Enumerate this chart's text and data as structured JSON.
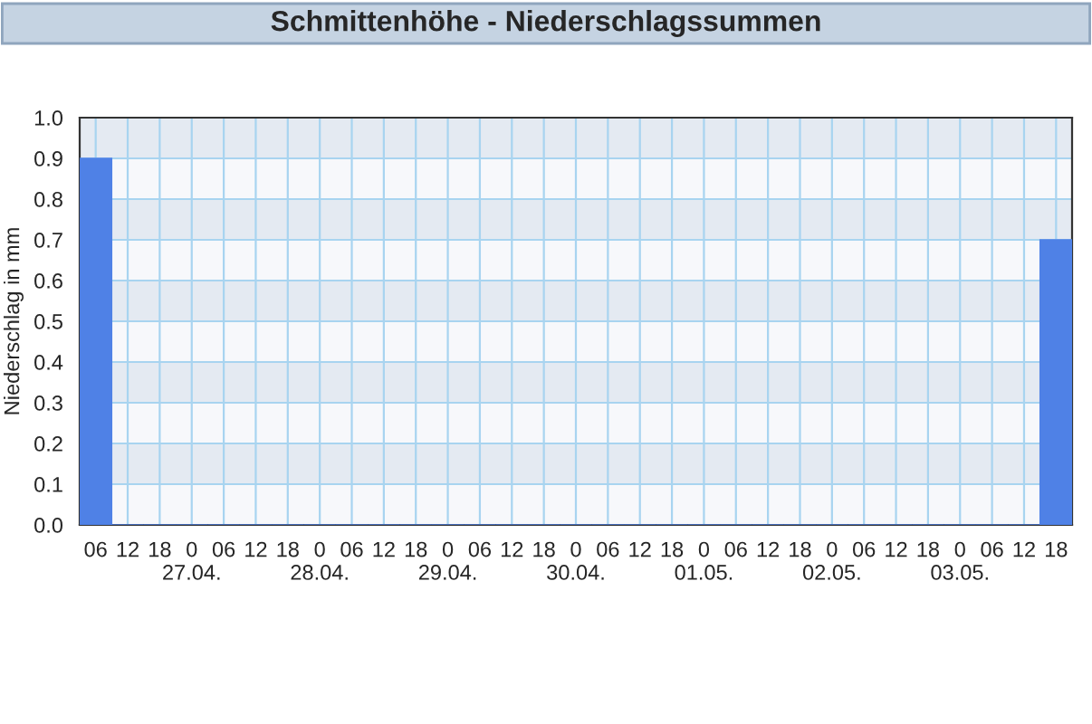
{
  "chart_data": {
    "type": "bar",
    "title": "Schmittenhöhe - Niederschlagssummen",
    "ylabel": "Niederschlag in mm",
    "categories": [
      "06",
      "12",
      "18",
      "0\n27.04.",
      "06",
      "12",
      "18",
      "0\n28.04.",
      "06",
      "12",
      "18",
      "0\n29.04.",
      "06",
      "12",
      "18",
      "0\n30.04.",
      "06",
      "12",
      "18",
      "0\n01.05.",
      "06",
      "12",
      "18",
      "0\n02.05.",
      "06",
      "12",
      "18",
      "0\n03.05.",
      "06",
      "12",
      "18"
    ],
    "series": [
      {
        "color": "#4f81e6",
        "values": [
          0.9,
          0,
          0,
          0,
          0,
          0,
          0,
          0,
          0,
          0,
          0,
          0,
          0,
          0,
          0,
          0,
          0,
          0,
          0,
          0,
          0,
          0,
          0,
          0,
          0,
          0,
          0,
          0,
          0,
          0,
          0.7
        ]
      }
    ],
    "ylim": [
      0,
      1.0
    ],
    "yticks": [
      {
        "value": 0,
        "label": "0.0"
      },
      {
        "value": 0.1,
        "label": "0.1"
      },
      {
        "value": 0.2,
        "label": "0.2"
      },
      {
        "value": 0.3,
        "label": "0.3"
      },
      {
        "value": 0.4,
        "label": "0.4"
      },
      {
        "value": 0.5,
        "label": "0.5"
      },
      {
        "value": 0.6,
        "label": "0.6"
      },
      {
        "value": 0.7,
        "label": "0.7"
      },
      {
        "value": 0.8,
        "label": "0.8"
      },
      {
        "value": 0.9,
        "label": "0.9"
      },
      {
        "value": 1.0,
        "label": "1.0"
      }
    ],
    "grid": true
  }
}
